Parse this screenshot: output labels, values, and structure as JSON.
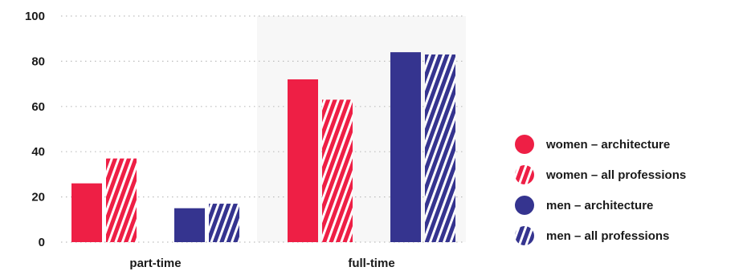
{
  "chart_data": {
    "type": "bar",
    "categories": [
      "part-time",
      "full-time"
    ],
    "series": [
      {
        "name": "women – architecture",
        "values": [
          26,
          72
        ],
        "color": "#ee1f45",
        "pattern": "solid"
      },
      {
        "name": "women – all professions",
        "values": [
          37,
          63
        ],
        "color": "#ee1f45",
        "pattern": "striped"
      },
      {
        "name": "men – architecture",
        "values": [
          15,
          84
        ],
        "color": "#35348f",
        "pattern": "solid"
      },
      {
        "name": "men – all professions",
        "values": [
          17,
          83
        ],
        "color": "#35348f",
        "pattern": "striped"
      }
    ],
    "yticks": [
      "0",
      "20",
      "40",
      "60",
      "80",
      "100"
    ],
    "ylim": [
      0,
      100
    ],
    "grid": true,
    "highlight_category": "full-time",
    "legend_position": "right"
  }
}
